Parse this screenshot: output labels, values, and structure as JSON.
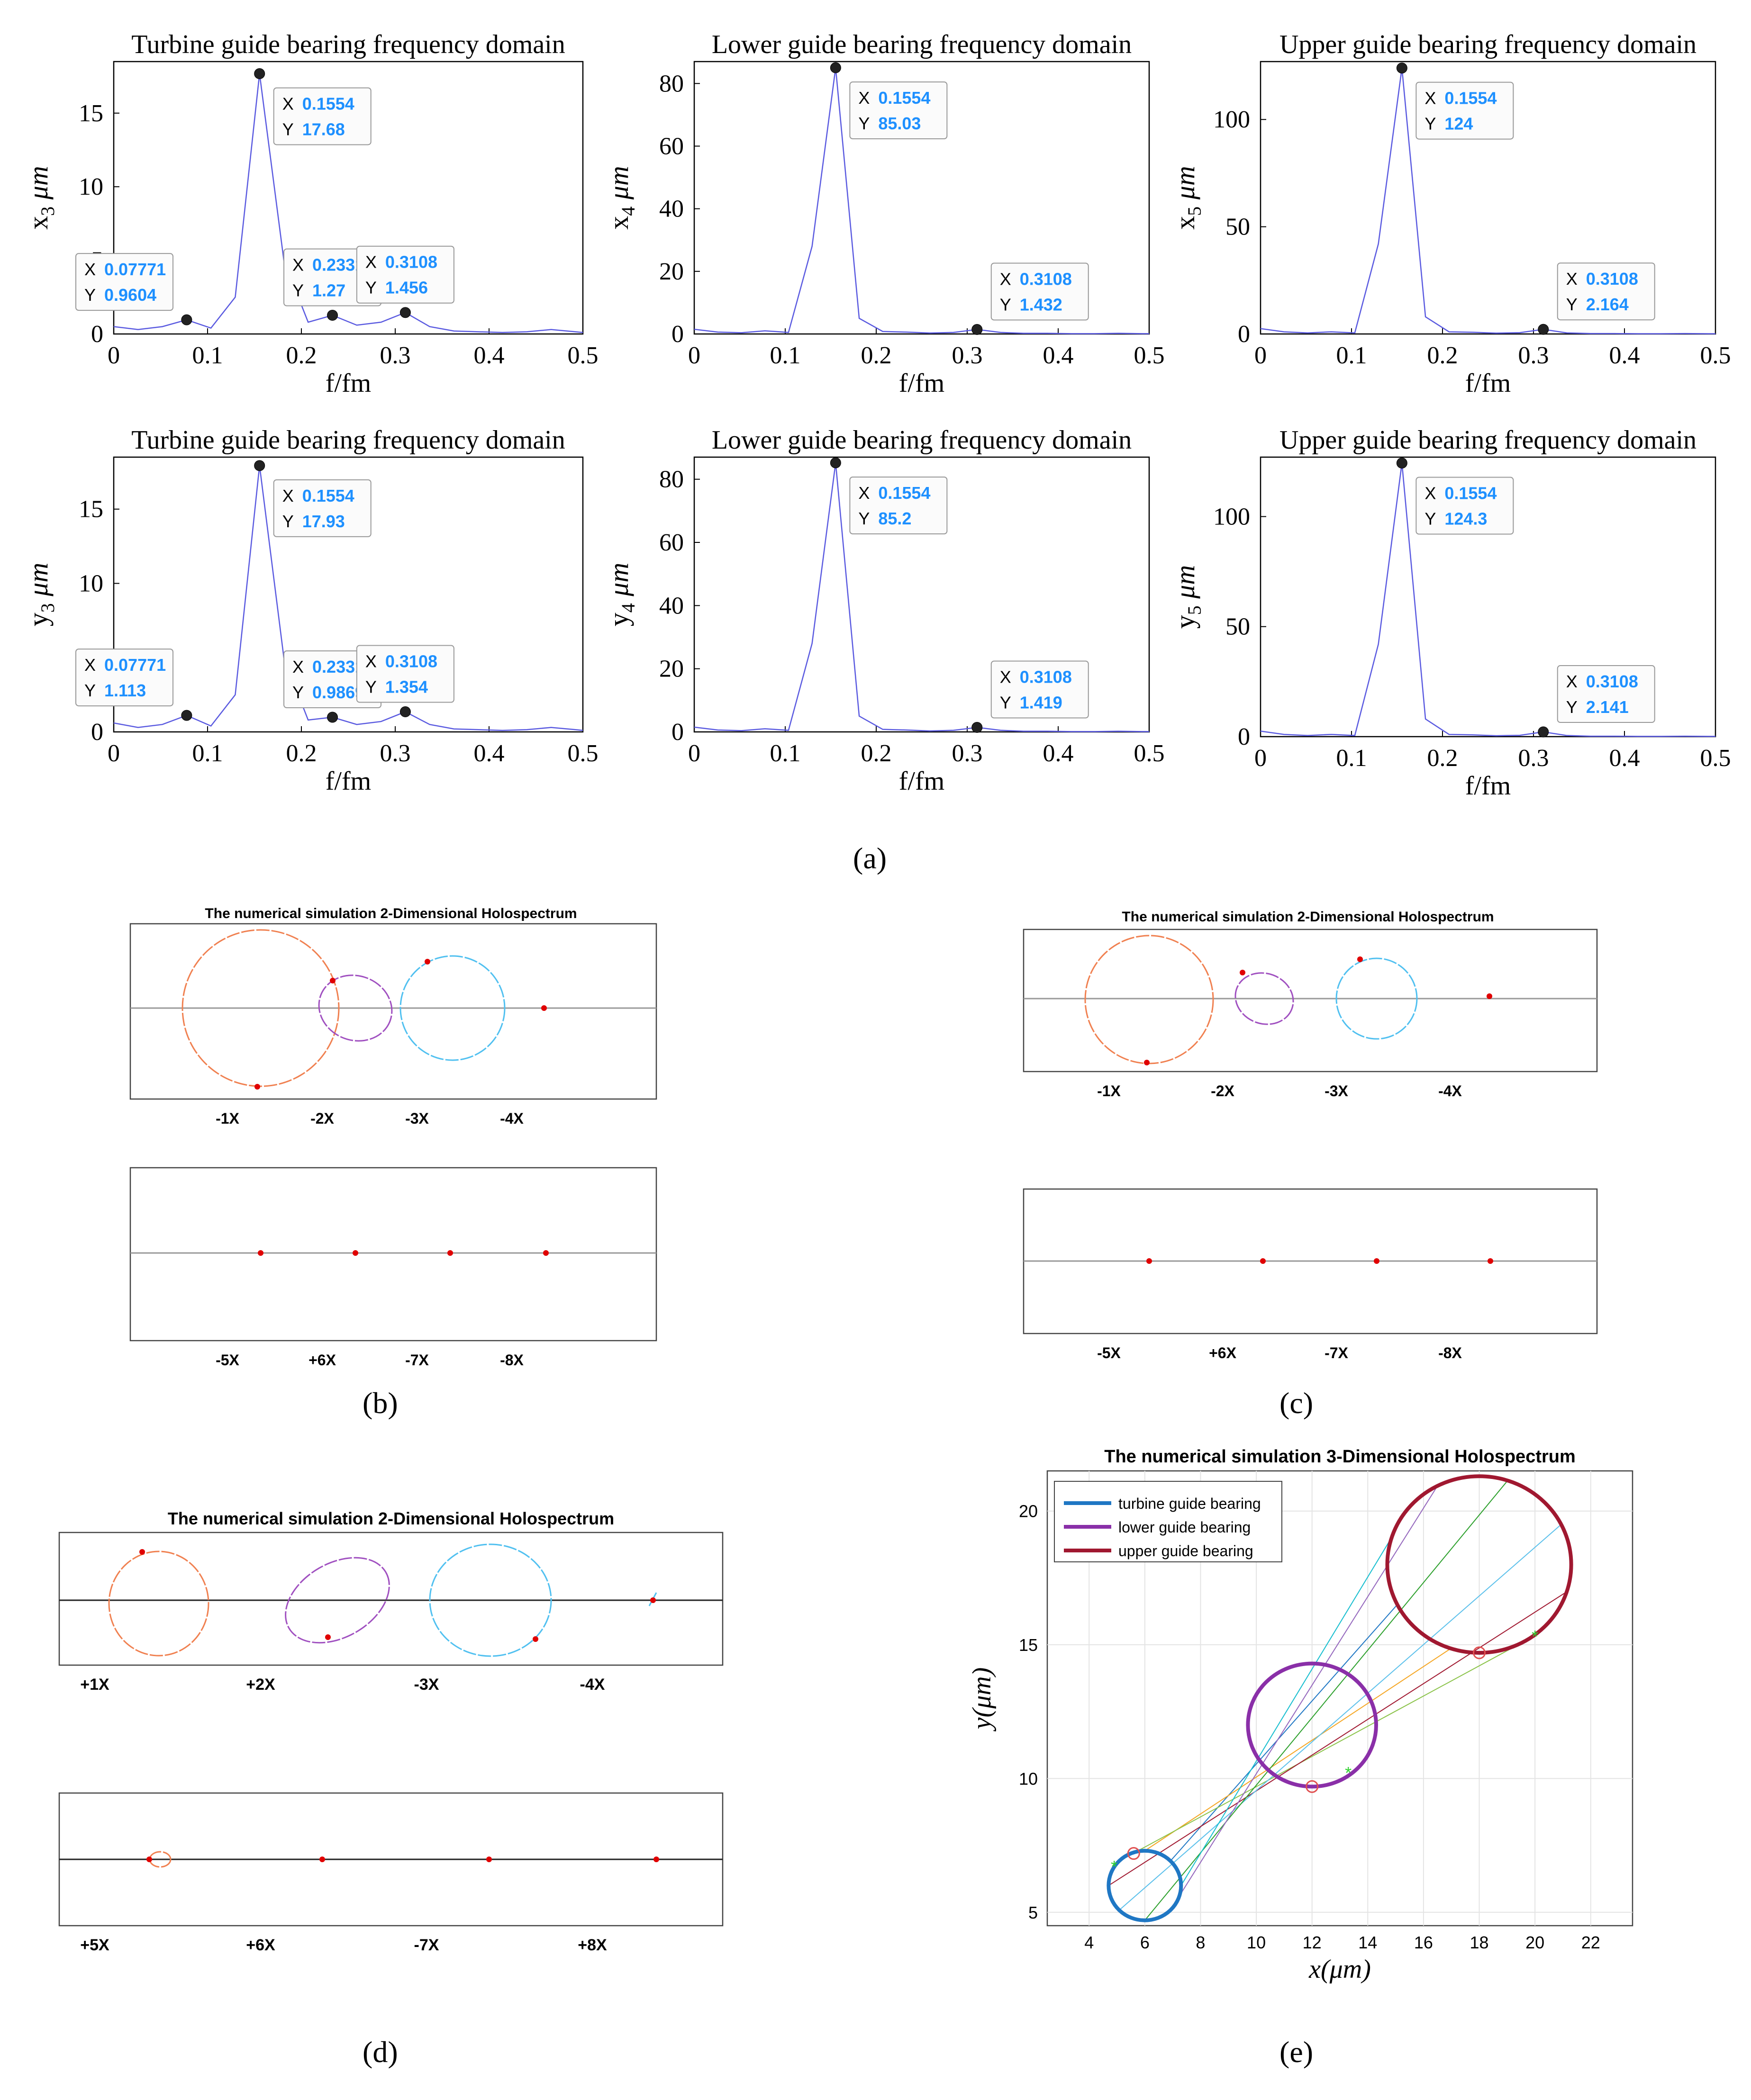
{
  "captions": {
    "a": "(a)",
    "b": "(b)",
    "c": "(c)",
    "d": "(d)",
    "e": "(e)"
  },
  "colors": {
    "spectrum_line": "#5a5ae0",
    "marker": "#000000",
    "datatip_x": "#1e90ff",
    "orbit_1x": "#f08050",
    "orbit_2x": "#a050c0",
    "orbit_3x": "#50c0f0",
    "phase_point": "#e00000",
    "turbine": "#1f77c4",
    "lower": "#8a2fa8",
    "upper": "#a01830"
  },
  "spectra": [
    {
      "title": "Turbine guide bearing frequency domain",
      "ylabel_main": "x",
      "ylabel_sub": "3",
      "ylabel_unit": "μm",
      "xlabel": "f/fm",
      "xlim": [
        0,
        0.5
      ],
      "ylim": [
        0,
        18.5
      ],
      "xticks": [
        "0",
        "0.1",
        "0.2",
        "0.3",
        "0.4",
        "0.5"
      ],
      "yticks": [
        0,
        5,
        10,
        15
      ],
      "x": [
        0,
        0.0259,
        0.0518,
        0.0777,
        0.1036,
        0.1295,
        0.1554,
        0.1813,
        0.2072,
        0.2331,
        0.259,
        0.2849,
        0.3108,
        0.3367,
        0.3626,
        0.3885,
        0.4144,
        0.4403,
        0.4662,
        0.4921,
        0.5
      ],
      "y": [
        0.5,
        0.3,
        0.5,
        0.96,
        0.4,
        2.5,
        17.68,
        5,
        0.8,
        1.27,
        0.6,
        0.8,
        1.456,
        0.5,
        0.2,
        0.15,
        0.1,
        0.15,
        0.3,
        0.15,
        0.1
      ],
      "datatips": [
        {
          "X": "0.1554",
          "Y": "17.68",
          "x": 0.1554,
          "y": 17.68
        },
        {
          "X": "0.07771",
          "Y": "0.9604",
          "x": 0.07771,
          "y": 0.9604
        },
        {
          "X": "0.2331",
          "Y": "1.27",
          "x": 0.2331,
          "y": 1.27
        },
        {
          "X": "0.3108",
          "Y": "1.456",
          "x": 0.3108,
          "y": 1.456
        }
      ]
    },
    {
      "title": "Lower guide bearing frequency domain",
      "ylabel_main": "x",
      "ylabel_sub": "4",
      "ylabel_unit": "μm",
      "xlabel": "f/fm",
      "xlim": [
        0,
        0.5
      ],
      "ylim": [
        0,
        87
      ],
      "xticks": [
        "0",
        "0.1",
        "0.2",
        "0.3",
        "0.4",
        "0.5"
      ],
      "yticks": [
        0,
        20,
        40,
        60,
        80
      ],
      "x": [
        0,
        0.0259,
        0.0518,
        0.0777,
        0.1036,
        0.1295,
        0.1554,
        0.1813,
        0.2072,
        0.2331,
        0.259,
        0.2849,
        0.3108,
        0.3367,
        0.3626,
        0.3885,
        0.4144,
        0.4403,
        0.4662,
        0.4921,
        0.5
      ],
      "y": [
        1.5,
        0.6,
        0.4,
        1,
        0.5,
        28,
        85.03,
        5,
        0.8,
        0.6,
        0.3,
        0.5,
        1.432,
        0.5,
        0.2,
        0.2,
        0.1,
        0.1,
        0.2,
        0.1,
        0.1
      ],
      "datatips": [
        {
          "X": "0.1554",
          "Y": "85.03",
          "x": 0.1554,
          "y": 85.03
        },
        {
          "X": "0.3108",
          "Y": "1.432",
          "x": 0.3108,
          "y": 1.432
        }
      ]
    },
    {
      "title": "Upper guide bearing frequency domain",
      "ylabel_main": "x",
      "ylabel_sub": "5",
      "ylabel_unit": "μm",
      "xlabel": "f/fm",
      "xlim": [
        0,
        0.5
      ],
      "ylim": [
        0,
        127
      ],
      "xticks": [
        "0",
        "0.1",
        "0.2",
        "0.3",
        "0.4",
        "0.5"
      ],
      "yticks": [
        0,
        50,
        100
      ],
      "x": [
        0,
        0.0259,
        0.0518,
        0.0777,
        0.1036,
        0.1295,
        0.1554,
        0.1813,
        0.2072,
        0.2331,
        0.259,
        0.2849,
        0.3108,
        0.3367,
        0.3626,
        0.3885,
        0.4144,
        0.4403,
        0.4662,
        0.4921,
        0.5
      ],
      "y": [
        2.5,
        1,
        0.5,
        1,
        0.5,
        42,
        124,
        8,
        1,
        0.8,
        0.4,
        0.6,
        2.164,
        0.5,
        0.2,
        0.2,
        0.1,
        0.1,
        0.2,
        0.1,
        0.1
      ],
      "datatips": [
        {
          "X": "0.1554",
          "Y": "124",
          "x": 0.1554,
          "y": 124
        },
        {
          "X": "0.3108",
          "Y": "2.164",
          "x": 0.3108,
          "y": 2.164
        }
      ]
    },
    {
      "title": "Turbine guide bearing frequency domain",
      "ylabel_main": "y",
      "ylabel_sub": "3",
      "ylabel_unit": "μm",
      "xlabel": "f/fm",
      "xlim": [
        0,
        0.5
      ],
      "ylim": [
        0,
        18.5
      ],
      "xticks": [
        "0",
        "0.1",
        "0.2",
        "0.3",
        "0.4",
        "0.5"
      ],
      "yticks": [
        0,
        5,
        10,
        15
      ],
      "x": [
        0,
        0.0259,
        0.0518,
        0.0777,
        0.1036,
        0.1295,
        0.1554,
        0.1813,
        0.2072,
        0.2331,
        0.259,
        0.2849,
        0.3108,
        0.3367,
        0.3626,
        0.3885,
        0.4144,
        0.4403,
        0.4662,
        0.4921,
        0.5
      ],
      "y": [
        0.6,
        0.3,
        0.5,
        1.113,
        0.4,
        2.5,
        17.93,
        5,
        0.8,
        0.9869,
        0.5,
        0.7,
        1.354,
        0.5,
        0.2,
        0.15,
        0.1,
        0.15,
        0.3,
        0.15,
        0.1
      ],
      "datatips": [
        {
          "X": "0.1554",
          "Y": "17.93",
          "x": 0.1554,
          "y": 17.93
        },
        {
          "X": "0.07771",
          "Y": "1.113",
          "x": 0.07771,
          "y": 1.113
        },
        {
          "X": "0.2331",
          "Y": "0.9869",
          "x": 0.2331,
          "y": 0.9869
        },
        {
          "X": "0.3108",
          "Y": "1.354",
          "x": 0.3108,
          "y": 1.354
        }
      ]
    },
    {
      "title": "Lower guide bearing frequency domain",
      "ylabel_main": "y",
      "ylabel_sub": "4",
      "ylabel_unit": "μm",
      "xlabel": "f/fm",
      "xlim": [
        0,
        0.5
      ],
      "ylim": [
        0,
        87
      ],
      "xticks": [
        "0",
        "0.1",
        "0.2",
        "0.3",
        "0.4",
        "0.5"
      ],
      "yticks": [
        0,
        20,
        40,
        60,
        80
      ],
      "x": [
        0,
        0.0259,
        0.0518,
        0.0777,
        0.1036,
        0.1295,
        0.1554,
        0.1813,
        0.2072,
        0.2331,
        0.259,
        0.2849,
        0.3108,
        0.3367,
        0.3626,
        0.3885,
        0.4144,
        0.4403,
        0.4662,
        0.4921,
        0.5
      ],
      "y": [
        1.5,
        0.6,
        0.4,
        1,
        0.5,
        28,
        85.2,
        5,
        0.8,
        0.6,
        0.3,
        0.5,
        1.419,
        0.5,
        0.2,
        0.2,
        0.1,
        0.1,
        0.2,
        0.1,
        0.1
      ],
      "datatips": [
        {
          "X": "0.1554",
          "Y": "85.2",
          "x": 0.1554,
          "y": 85.2
        },
        {
          "X": "0.3108",
          "Y": "1.419",
          "x": 0.3108,
          "y": 1.419
        }
      ]
    },
    {
      "title": "Upper guide bearing frequency domain",
      "ylabel_main": "y",
      "ylabel_sub": "5",
      "ylabel_unit": "μm",
      "xlabel": "f/fm",
      "xlim": [
        0,
        0.5
      ],
      "ylim": [
        0,
        127
      ],
      "xticks": [
        "0",
        "0.1",
        "0.2",
        "0.3",
        "0.4",
        "0.5"
      ],
      "yticks": [
        0,
        50,
        100
      ],
      "x": [
        0,
        0.0259,
        0.0518,
        0.0777,
        0.1036,
        0.1295,
        0.1554,
        0.1813,
        0.2072,
        0.2331,
        0.259,
        0.2849,
        0.3108,
        0.3367,
        0.3626,
        0.3885,
        0.4144,
        0.4403,
        0.4662,
        0.4921,
        0.5
      ],
      "y": [
        2.5,
        1,
        0.5,
        1,
        0.5,
        42,
        124.3,
        8,
        1,
        0.8,
        0.4,
        0.6,
        2.141,
        0.5,
        0.2,
        0.2,
        0.1,
        0.1,
        0.2,
        0.1,
        0.1
      ],
      "datatips": [
        {
          "X": "0.1554",
          "Y": "124.3",
          "x": 0.1554,
          "y": 124.3
        },
        {
          "X": "0.3108",
          "Y": "2.141",
          "x": 0.3108,
          "y": 2.141
        }
      ]
    }
  ],
  "holo2d": {
    "b": {
      "title": "The numerical simulation 2-Dimensional Holospectrum",
      "top_labels": [
        "-1X",
        "-2X",
        "-3X",
        "-4X"
      ],
      "bottom_labels": [
        "-5X",
        "+6X",
        "-7X",
        "-8X"
      ]
    },
    "c": {
      "title": "The numerical simulation 2-Dimensional Holospectrum",
      "top_labels": [
        "-1X",
        "-2X",
        "-3X",
        "-4X"
      ],
      "bottom_labels": [
        "-5X",
        "+6X",
        "-7X",
        "-8X"
      ]
    },
    "d": {
      "title": "The numerical simulation 2-Dimensional Holospectrum",
      "top_labels": [
        "+1X",
        "+2X",
        "-3X",
        "-4X"
      ],
      "bottom_labels": [
        "+5X",
        "+6X",
        "-7X",
        "+8X"
      ]
    }
  },
  "chart_data": {
    "type": "line",
    "title": "The numerical simulation 3-Dimensional Holospectrum",
    "xlabel": "x(μm)",
    "ylabel": "y(μm)",
    "xlim": [
      2.5,
      23.5
    ],
    "ylim": [
      4.5,
      21.5
    ],
    "xticks": [
      4,
      6,
      8,
      10,
      12,
      14,
      16,
      18,
      20,
      22
    ],
    "yticks": [
      5,
      10,
      15,
      20
    ],
    "grid": true,
    "legend_placement": "top-left",
    "series": [
      {
        "name": "turbine guide bearing",
        "cx": 6,
        "cy": 6,
        "r": 1.3,
        "color": "#1f77c4"
      },
      {
        "name": "lower guide bearing",
        "cx": 12,
        "cy": 12,
        "r": 2.3,
        "color": "#8a2fa8"
      },
      {
        "name": "upper guide bearing",
        "cx": 18,
        "cy": 18,
        "r": 3.3,
        "color": "#a01830"
      }
    ],
    "circle_markers": [
      {
        "x": 5.6,
        "y": 7.2
      },
      {
        "x": 12,
        "y": 9.7
      },
      {
        "x": 18,
        "y": 14.7
      }
    ],
    "star_markers": [
      {
        "x": 4.9,
        "y": 6.7
      },
      {
        "x": 13.3,
        "y": 10.2
      },
      {
        "x": 20,
        "y": 15.3
      }
    ]
  }
}
